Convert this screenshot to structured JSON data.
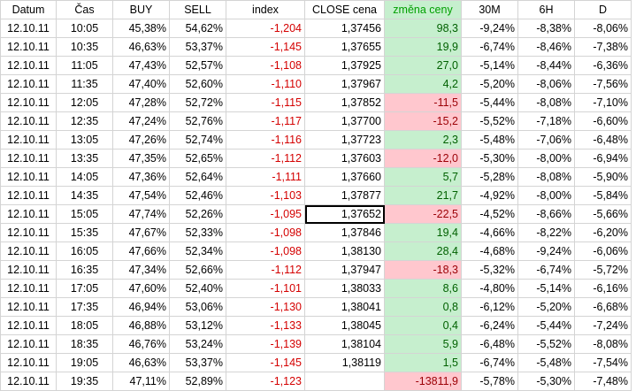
{
  "headers": {
    "datum": "Datum",
    "cas": "Čas",
    "buy": "BUY",
    "sell": "SELL",
    "index": "index",
    "close": "CLOSE cena",
    "zmena": "změna ceny",
    "m30": "30M",
    "h6": "6H",
    "d": "D"
  },
  "rows": [
    {
      "datum": "12.10.11",
      "cas": "10:05",
      "buy": "45,38%",
      "sell": "54,62%",
      "index": "-1,204",
      "close": "1,37456",
      "zmena": "98,3",
      "m30": "-9,24%",
      "h6": "-8,38%",
      "d": "-8,06%"
    },
    {
      "datum": "12.10.11",
      "cas": "10:35",
      "buy": "46,63%",
      "sell": "53,37%",
      "index": "-1,145",
      "close": "1,37655",
      "zmena": "19,9",
      "m30": "-6,74%",
      "h6": "-8,46%",
      "d": "-7,38%"
    },
    {
      "datum": "12.10.11",
      "cas": "11:05",
      "buy": "47,43%",
      "sell": "52,57%",
      "index": "-1,108",
      "close": "1,37925",
      "zmena": "27,0",
      "m30": "-5,14%",
      "h6": "-8,44%",
      "d": "-6,36%"
    },
    {
      "datum": "12.10.11",
      "cas": "11:35",
      "buy": "47,40%",
      "sell": "52,60%",
      "index": "-1,110",
      "close": "1,37967",
      "zmena": "4,2",
      "m30": "-5,20%",
      "h6": "-8,06%",
      "d": "-7,56%"
    },
    {
      "datum": "12.10.11",
      "cas": "12:05",
      "buy": "47,28%",
      "sell": "52,72%",
      "index": "-1,115",
      "close": "1,37852",
      "zmena": "-11,5",
      "m30": "-5,44%",
      "h6": "-8,08%",
      "d": "-7,10%"
    },
    {
      "datum": "12.10.11",
      "cas": "12:35",
      "buy": "47,24%",
      "sell": "52,76%",
      "index": "-1,117",
      "close": "1,37700",
      "zmena": "-15,2",
      "m30": "-5,52%",
      "h6": "-7,18%",
      "d": "-6,60%"
    },
    {
      "datum": "12.10.11",
      "cas": "13:05",
      "buy": "47,26%",
      "sell": "52,74%",
      "index": "-1,116",
      "close": "1,37723",
      "zmena": "2,3",
      "m30": "-5,48%",
      "h6": "-7,06%",
      "d": "-6,48%"
    },
    {
      "datum": "12.10.11",
      "cas": "13:35",
      "buy": "47,35%",
      "sell": "52,65%",
      "index": "-1,112",
      "close": "1,37603",
      "zmena": "-12,0",
      "m30": "-5,30%",
      "h6": "-8,00%",
      "d": "-6,94%"
    },
    {
      "datum": "12.10.11",
      "cas": "14:05",
      "buy": "47,36%",
      "sell": "52,64%",
      "index": "-1,111",
      "close": "1,37660",
      "zmena": "5,7",
      "m30": "-5,28%",
      "h6": "-8,08%",
      "d": "-5,90%"
    },
    {
      "datum": "12.10.11",
      "cas": "14:35",
      "buy": "47,54%",
      "sell": "52,46%",
      "index": "-1,103",
      "close": "1,37877",
      "zmena": "21,7",
      "m30": "-4,92%",
      "h6": "-8,00%",
      "d": "-5,84%"
    },
    {
      "datum": "12.10.11",
      "cas": "15:05",
      "buy": "47,74%",
      "sell": "52,26%",
      "index": "-1,095",
      "close": "1,37652",
      "zmena": "-22,5",
      "m30": "-4,52%",
      "h6": "-8,66%",
      "d": "-5,66%"
    },
    {
      "datum": "12.10.11",
      "cas": "15:35",
      "buy": "47,67%",
      "sell": "52,33%",
      "index": "-1,098",
      "close": "1,37846",
      "zmena": "19,4",
      "m30": "-4,66%",
      "h6": "-8,22%",
      "d": "-6,20%"
    },
    {
      "datum": "12.10.11",
      "cas": "16:05",
      "buy": "47,66%",
      "sell": "52,34%",
      "index": "-1,098",
      "close": "1,38130",
      "zmena": "28,4",
      "m30": "-4,68%",
      "h6": "-9,24%",
      "d": "-6,06%"
    },
    {
      "datum": "12.10.11",
      "cas": "16:35",
      "buy": "47,34%",
      "sell": "52,66%",
      "index": "-1,112",
      "close": "1,37947",
      "zmena": "-18,3",
      "m30": "-5,32%",
      "h6": "-6,74%",
      "d": "-5,72%"
    },
    {
      "datum": "12.10.11",
      "cas": "17:05",
      "buy": "47,60%",
      "sell": "52,40%",
      "index": "-1,101",
      "close": "1,38033",
      "zmena": "8,6",
      "m30": "-4,80%",
      "h6": "-5,14%",
      "d": "-6,16%"
    },
    {
      "datum": "12.10.11",
      "cas": "17:35",
      "buy": "46,94%",
      "sell": "53,06%",
      "index": "-1,130",
      "close": "1,38041",
      "zmena": "0,8",
      "m30": "-6,12%",
      "h6": "-5,20%",
      "d": "-6,68%"
    },
    {
      "datum": "12.10.11",
      "cas": "18:05",
      "buy": "46,88%",
      "sell": "53,12%",
      "index": "-1,133",
      "close": "1,38045",
      "zmena": "0,4",
      "m30": "-6,24%",
      "h6": "-5,44%",
      "d": "-7,24%"
    },
    {
      "datum": "12.10.11",
      "cas": "18:35",
      "buy": "46,76%",
      "sell": "53,24%",
      "index": "-1,139",
      "close": "1,38104",
      "zmena": "5,9",
      "m30": "-6,48%",
      "h6": "-5,52%",
      "d": "-8,08%"
    },
    {
      "datum": "12.10.11",
      "cas": "19:05",
      "buy": "46,63%",
      "sell": "53,37%",
      "index": "-1,145",
      "close": "1,38119",
      "zmena": "1,5",
      "m30": "-6,74%",
      "h6": "-5,48%",
      "d": "-7,54%"
    },
    {
      "datum": "12.10.11",
      "cas": "19:35",
      "buy": "47,11%",
      "sell": "52,89%",
      "index": "-1,123",
      "close": "",
      "zmena": "-13811,9",
      "m30": "-5,78%",
      "h6": "-5,30%",
      "d": "-7,48%"
    }
  ]
}
